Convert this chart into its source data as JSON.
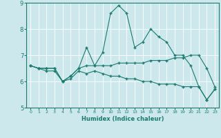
{
  "xlabel": "Humidex (Indice chaleur)",
  "bg_color": "#cce8ed",
  "grid_color": "#b0d4d8",
  "line_color": "#1a7a6e",
  "xlim": [
    -0.5,
    23.5
  ],
  "ylim": [
    5,
    9
  ],
  "yticks": [
    5,
    6,
    7,
    8,
    9
  ],
  "xticks": [
    0,
    1,
    2,
    3,
    4,
    5,
    6,
    7,
    8,
    9,
    10,
    11,
    12,
    13,
    14,
    15,
    16,
    17,
    18,
    19,
    20,
    21,
    22,
    23
  ],
  "series": [
    [
      6.6,
      6.5,
      6.5,
      6.5,
      6.0,
      6.2,
      6.5,
      7.3,
      6.6,
      7.1,
      8.6,
      8.9,
      8.6,
      7.3,
      7.5,
      8.0,
      7.7,
      7.5,
      7.0,
      7.0,
      6.6,
      5.8,
      5.3,
      5.7
    ],
    [
      6.6,
      6.5,
      6.5,
      6.5,
      6.0,
      6.2,
      6.5,
      6.6,
      6.6,
      6.6,
      6.6,
      6.7,
      6.7,
      6.7,
      6.7,
      6.8,
      6.8,
      6.8,
      6.9,
      6.9,
      7.0,
      7.0,
      6.5,
      5.8
    ],
    [
      6.6,
      6.5,
      6.4,
      6.4,
      6.0,
      6.1,
      6.4,
      6.3,
      6.4,
      6.3,
      6.2,
      6.2,
      6.1,
      6.1,
      6.0,
      6.0,
      5.9,
      5.9,
      5.9,
      5.8,
      5.8,
      5.8,
      5.3,
      5.7
    ]
  ]
}
